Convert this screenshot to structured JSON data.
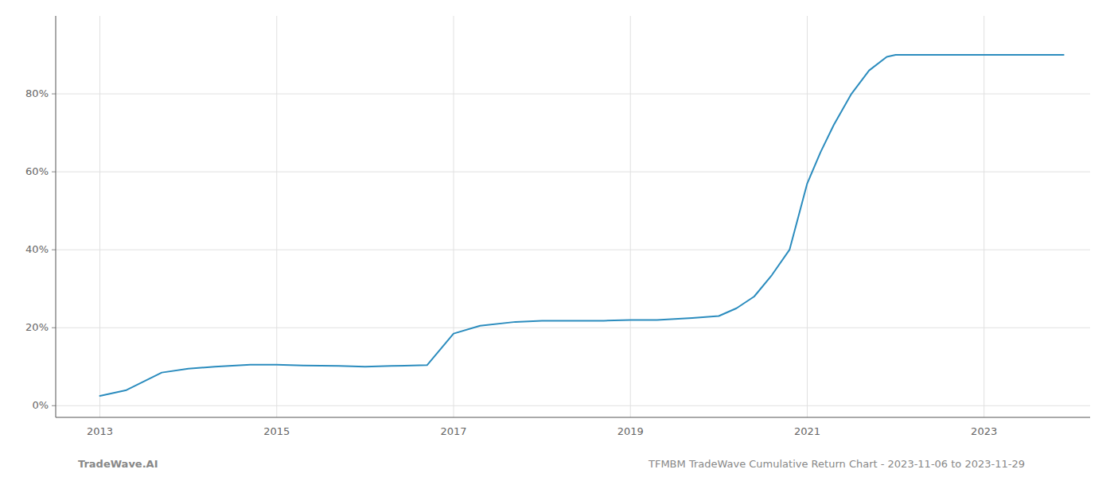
{
  "chart_data": {
    "type": "line",
    "x": [
      2013.0,
      2013.3,
      2013.7,
      2014.0,
      2014.3,
      2014.7,
      2015.0,
      2015.3,
      2015.7,
      2016.0,
      2016.3,
      2016.7,
      2017.0,
      2017.3,
      2017.7,
      2018.0,
      2018.3,
      2018.7,
      2019.0,
      2019.3,
      2019.7,
      2020.0,
      2020.2,
      2020.4,
      2020.6,
      2020.8,
      2021.0,
      2021.15,
      2021.3,
      2021.5,
      2021.7,
      2021.9,
      2022.0,
      2022.5,
      2023.0,
      2023.9
    ],
    "values": [
      2.5,
      4.0,
      8.5,
      9.5,
      10.0,
      10.5,
      10.5,
      10.3,
      10.2,
      10.0,
      10.2,
      10.4,
      18.5,
      20.5,
      21.5,
      21.8,
      21.8,
      21.8,
      22.0,
      22.0,
      22.5,
      23.0,
      25.0,
      28.0,
      33.5,
      40.0,
      57.0,
      65.0,
      72.0,
      80.0,
      86.0,
      89.5,
      90.0,
      90.0,
      90.0,
      90.0
    ],
    "color": "#2b8cbe",
    "xlim": [
      2012.5,
      2024.2
    ],
    "xticks": [
      2013,
      2015,
      2017,
      2019,
      2021,
      2023
    ],
    "ylim": [
      -3,
      100
    ],
    "yticks": [
      {
        "value": 0,
        "label": "0%"
      },
      {
        "value": 20,
        "label": "20%"
      },
      {
        "value": 40,
        "label": "40%"
      },
      {
        "value": 60,
        "label": "60%"
      },
      {
        "value": 80,
        "label": "80%"
      }
    ],
    "grid": true,
    "annotations": [
      "TradeWave.AI",
      "TFMBM TradeWave Cumulative Return Chart - 2023-11-06 to 2023-11-29"
    ]
  }
}
